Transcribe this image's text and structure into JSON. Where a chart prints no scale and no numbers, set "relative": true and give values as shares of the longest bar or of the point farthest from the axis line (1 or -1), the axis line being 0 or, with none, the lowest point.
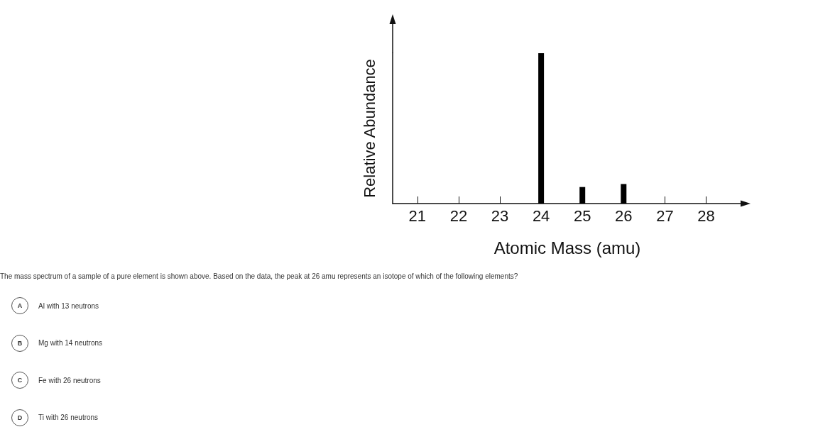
{
  "chart_data": {
    "type": "bar",
    "relative": true,
    "x": [
      24,
      25,
      26
    ],
    "values": [
      1,
      0.11,
      0.13
    ],
    "color": "#000000",
    "xlim": [
      20.4,
      28.87
    ],
    "xticks": [
      21,
      22,
      23,
      24,
      25,
      26,
      27,
      28
    ],
    "xlabel": "Atomic Mass (amu)",
    "ylabel": "Relative Abundance",
    "grid": false,
    "annotations": [
      "The mass spectrum of a sample of a pure element is shown above. Based on the data, the peak at 26 amu represents an isotope of which of the following elements?",
      "A",
      "Al with 13 neutrons",
      "B",
      "Mg with 14 neutrons",
      "C",
      "Fe with 26 neutrons",
      "D",
      "Ti with 26 neutrons"
    ]
  }
}
